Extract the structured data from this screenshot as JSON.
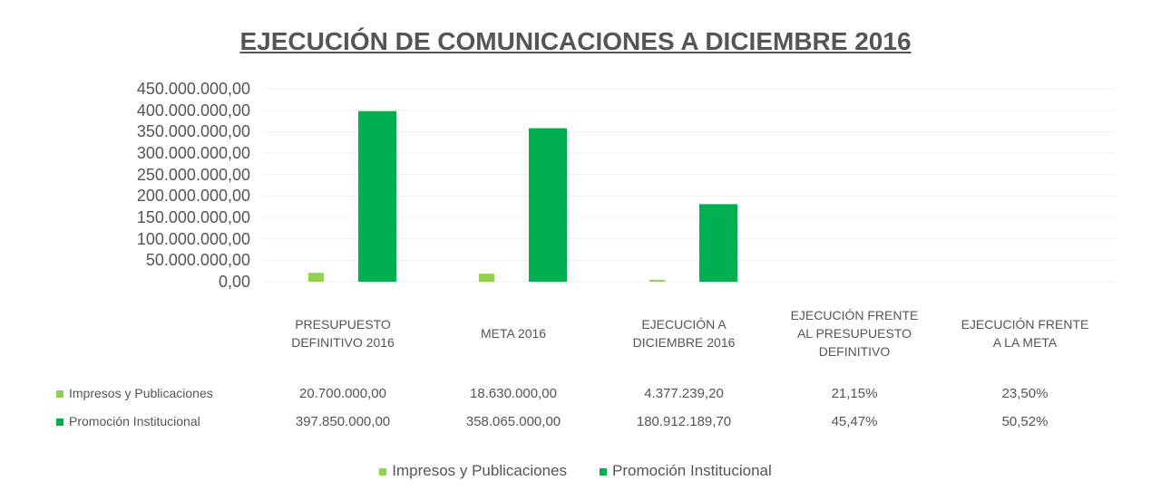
{
  "chart_data": {
    "type": "bar",
    "title": "EJECUCIÓN DE COMUNICACIONES A DICIEMBRE 2016",
    "categories": [
      "PRESUPUESTO DEFINITIVO 2016",
      "META 2016",
      "EJECUCIÓN A DICIEMBRE 2016",
      "EJECUCIÓN FRENTE AL PRESUPUESTO DEFINITIVO",
      "EJECUCIÓN FRENTE A LA META"
    ],
    "series": [
      {
        "name": "Impresos y Publicaciones",
        "color": "#92d050",
        "values": [
          20700000,
          18630000,
          4377239.2,
          21.15,
          23.5
        ],
        "value_labels": [
          "20.700.000,00",
          "18.630.000,00",
          "4.377.239,20",
          "21,15%",
          "23,50%"
        ]
      },
      {
        "name": "Promoción Institucional",
        "color": "#00b050",
        "values": [
          397850000,
          358065000,
          180912189.7,
          45.47,
          50.52
        ],
        "value_labels": [
          "397.850.000,00",
          "358.065.000,00",
          "180.912.189,70",
          "45,47%",
          "50,52%"
        ]
      }
    ],
    "ylim": [
      0,
      450000000
    ],
    "yticks": [
      {
        "value": 0,
        "label": "0,00"
      },
      {
        "value": 50000000,
        "label": "50.000.000,00"
      },
      {
        "value": 100000000,
        "label": "100.000.000,00"
      },
      {
        "value": 150000000,
        "label": "150.000.000,00"
      },
      {
        "value": 200000000,
        "label": "200.000.000,00"
      },
      {
        "value": 250000000,
        "label": "250.000.000,00"
      },
      {
        "value": 300000000,
        "label": "300.000.000,00"
      },
      {
        "value": 350000000,
        "label": "350.000.000,00"
      },
      {
        "value": 400000000,
        "label": "400.000.000,00"
      },
      {
        "value": 450000000,
        "label": "450.000.000,00"
      }
    ],
    "grid": true,
    "legend": "bottom"
  }
}
